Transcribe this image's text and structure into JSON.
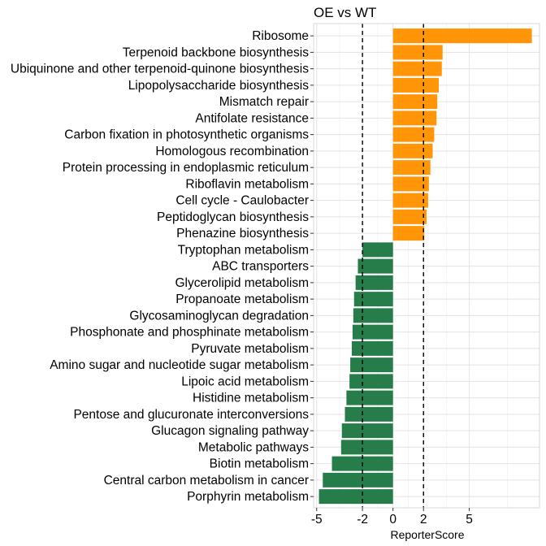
{
  "chart_data": {
    "type": "bar",
    "orientation": "horizontal",
    "title": "OE vs WT",
    "xlabel": "ReporterScore",
    "ylabel": "",
    "xlim": [
      -5.2,
      9.6
    ],
    "xticks": [
      -5,
      -2,
      0,
      2,
      5
    ],
    "xtick_labels": [
      "-5",
      "-2",
      "0",
      "2",
      "5"
    ],
    "reference_lines": [
      -2,
      2
    ],
    "grid": true,
    "colors": {
      "positive": "#FF9507",
      "negative": "#267D4A"
    },
    "categories": [
      "Ribosome",
      "Terpenoid backbone biosynthesis",
      "Ubiquinone and other terpenoid-quinone biosynthesis",
      "Lipopolysaccharide biosynthesis",
      "Mismatch repair",
      "Antifolate resistance",
      "Carbon fixation in photosynthetic organisms",
      "Homologous recombination",
      "Protein processing in endoplasmic reticulum",
      "Riboflavin metabolism",
      "Cell cycle - Caulobacter",
      "Peptidoglycan biosynthesis",
      "Phenazine biosynthesis",
      "Tryptophan metabolism",
      "ABC transporters",
      "Glycerolipid metabolism",
      "Propanoate metabolism",
      "Glycosaminoglycan degradation",
      "Phosphonate and phosphinate metabolism",
      "Pyruvate metabolism",
      "Amino sugar and nucleotide sugar metabolism",
      "Lipoic acid metabolism",
      "Histidine metabolism",
      "Pentose and glucuronate interconversions",
      "Glucagon signaling pathway",
      "Metabolic pathways",
      "Biotin metabolism",
      "Central carbon metabolism in cancer",
      "Porphyrin metabolism"
    ],
    "values": [
      9.1,
      3.25,
      3.2,
      3.0,
      2.9,
      2.85,
      2.7,
      2.6,
      2.45,
      2.35,
      2.3,
      2.2,
      2.05,
      -2.0,
      -2.3,
      -2.45,
      -2.55,
      -2.6,
      -2.65,
      -2.7,
      -2.8,
      -2.85,
      -3.05,
      -3.15,
      -3.35,
      -3.4,
      -4.0,
      -4.6,
      -4.85
    ]
  }
}
